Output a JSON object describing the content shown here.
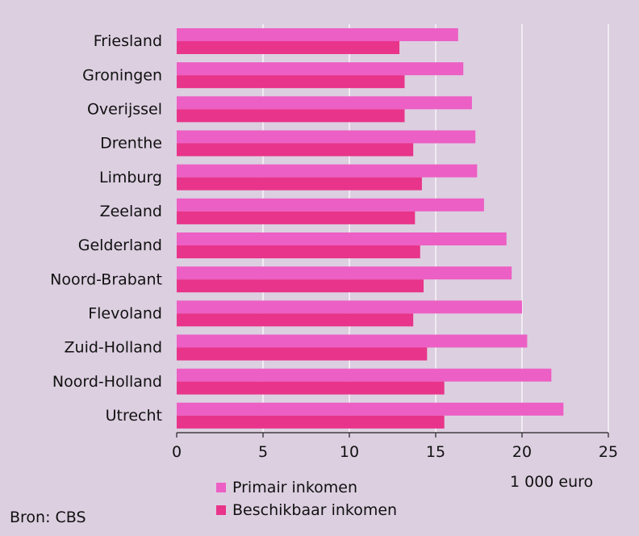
{
  "chart_data": {
    "type": "bar",
    "orientation": "horizontal",
    "categories": [
      "Friesland",
      "Groningen",
      "Overijssel",
      "Drenthe",
      "Limburg",
      "Zeeland",
      "Gelderland",
      "Noord-Brabant",
      "Flevoland",
      "Zuid-Holland",
      "Noord-Holland",
      "Utrecht"
    ],
    "series": [
      {
        "name": "Primair inkomen",
        "color": "#ec5fc4",
        "values": [
          16.3,
          16.6,
          17.1,
          17.3,
          17.4,
          17.8,
          19.1,
          19.4,
          20.0,
          20.3,
          21.7,
          22.4
        ]
      },
      {
        "name": "Beschikbaar inkomen",
        "color": "#e8348a",
        "values": [
          12.9,
          13.2,
          13.2,
          13.7,
          14.2,
          13.8,
          14.1,
          14.3,
          13.7,
          14.5,
          15.5,
          15.5
        ]
      }
    ],
    "xlim": [
      0,
      25
    ],
    "xticks": [
      "0",
      "5",
      "10",
      "15",
      "20",
      "25"
    ],
    "unit_label": "1 000 euro",
    "source": "Bron: CBS",
    "grid": "vertical white lines",
    "legend": "bottom"
  }
}
